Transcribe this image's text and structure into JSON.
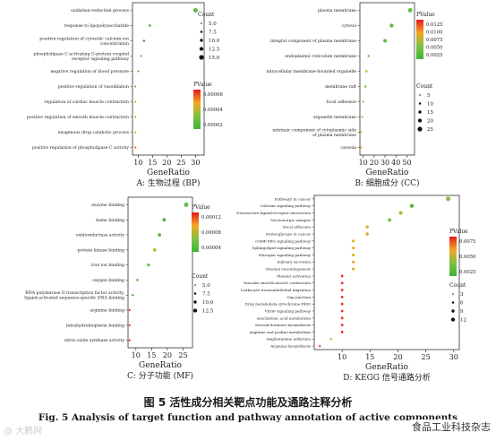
{
  "chart_data": [
    {
      "type": "scatter",
      "subtitle": "A: 生物过程 (BP)",
      "xlabel": "GeneRatio",
      "xticks": [
        10,
        15,
        20,
        25,
        30
      ],
      "xlim": [
        8,
        33
      ],
      "categories": [
        "oxidation-reduction process",
        "response to lipopolysaccharide",
        "positive regulation of cytosolic calcium ion concentration",
        "phospholipase C-activating G-protein coupled receptor signaling pathway",
        "negative regulation of blood pressure",
        "positive regulation of vasodilation",
        "regulation of cardiac muscle contraction",
        "positive regulation of smooth muscle contraction",
        "exogenous drug catabolic process",
        "positive regulation of phospholipase C activity"
      ],
      "values": [
        30,
        14,
        12,
        11,
        10,
        9,
        9,
        9,
        9,
        9
      ],
      "pvalue": [
        2e-05,
        2e-05,
        1e-05,
        3e-05,
        2e-05,
        2e-05,
        4e-05,
        4e-05,
        4e-05,
        6e-05
      ],
      "count": [
        30,
        14,
        12,
        11,
        10,
        9,
        9,
        9,
        9,
        9
      ],
      "pvalue_legend": {
        "title": "PValue",
        "ticks": [
          "0.00006",
          "0.00004",
          "0.00002"
        ],
        "range": [
          1e-05,
          7e-05
        ]
      },
      "count_legend": {
        "title": "Count",
        "ticks": [
          "5.0",
          "7.5",
          "10.0",
          "12.5",
          "15.0"
        ]
      }
    },
    {
      "type": "scatter",
      "subtitle": "B: 细胞成分 (CC)",
      "xlabel": "GeneRatio",
      "xticks": [
        10,
        20,
        30,
        40,
        50
      ],
      "xlim": [
        7,
        57
      ],
      "categories": [
        "plasma membrane",
        "cytosol",
        "integral component of plasma membrane",
        "endoplasmic reticulum membrane",
        "intracellular membrane-bounded organelle",
        "membrane raft",
        "focal adhesion",
        "organelle membrane",
        "extrinsic component of cytoplasmic side of plasma membrane",
        "caveola"
      ],
      "values": [
        53,
        36,
        30,
        15,
        13,
        12,
        10,
        9,
        8,
        8
      ],
      "pvalue": [
        0.004,
        0.003,
        0.004,
        0.005,
        0.007,
        0.003,
        0.006,
        0.008,
        0.009,
        0.01
      ],
      "count": [
        25,
        20,
        18,
        8,
        8,
        7,
        6,
        5,
        5,
        5
      ],
      "pvalue_legend": {
        "title": "PValue",
        "ticks": [
          "0.0125",
          "0.0100",
          "0.0075",
          "0.0050",
          "0.0025"
        ],
        "range": [
          0.001,
          0.014
        ]
      },
      "count_legend": {
        "title": "Count",
        "ticks": [
          "5",
          "10",
          "15",
          "20",
          "25"
        ]
      }
    },
    {
      "type": "scatter",
      "subtitle": "C: 分子功能 (MF)",
      "xlabel": "GeneRatio",
      "xticks": [
        10,
        15,
        20,
        25
      ],
      "xlim": [
        7.5,
        28
      ],
      "categories": [
        "enzyme binding",
        "heme binding",
        "oxidoreductase activity",
        "protein kinase binding",
        "iron ion binding",
        "oxygen binding",
        "RNA polymerase II transcription factor activity, ligand-activated sequence-specific DNA binding",
        "arginine binding",
        "tetrahydrobiopterin binding",
        "nitric-oxide synthase activity"
      ],
      "values": [
        26,
        19,
        17.5,
        16,
        14,
        10.5,
        9,
        8,
        8,
        8
      ],
      "pvalue": [
        4e-05,
        2e-05,
        4e-05,
        8e-05,
        4e-05,
        4e-05,
        2e-05,
        0.00014,
        0.00014,
        0.00014
      ],
      "count": [
        13,
        9,
        9,
        8,
        7,
        5,
        4,
        3,
        3,
        3
      ],
      "pvalue_legend": {
        "title": "PValue",
        "ticks": [
          "0.00012",
          "0.00008",
          "0.00004"
        ],
        "range": [
          1e-05,
          0.00015
        ]
      },
      "count_legend": {
        "title": "Count",
        "ticks": [
          "5.0",
          "7.5",
          "10.0",
          "12.5"
        ]
      }
    },
    {
      "type": "scatter",
      "subtitle": "D: KEGG 信号通路分析",
      "xlabel": "GeneRatio",
      "xticks": [
        10,
        15,
        20,
        25,
        30
      ],
      "xlim": [
        5,
        31
      ],
      "categories": [
        "Pathways in cancer",
        "Calcium signaling pathway",
        "Neuroactive ligand-receptor interaction",
        "Serotonergic synapse",
        "Focal adhesion",
        "Proteoglycans in cancer",
        "cGMP-PKG signaling pathway",
        "Sphingolipid signaling pathway",
        "Estrogen signaling pathway",
        "Salivary secretion",
        "Ovarian steroidogenesis",
        "Platelet activation",
        "Vascular smooth muscle contraction",
        "Leukocyte transendothelial migration",
        "Gap junction",
        "Drug metabolism-cytochrome P450",
        "VEGF signaling pathway",
        "Arachidonic acid metabolism",
        "Steroid hormone biosynthesis",
        "Arginine and proline metabolism",
        "Amphetamine addiction",
        "Arginine biosynthesis"
      ],
      "values": [
        29,
        22.5,
        20.5,
        18.5,
        14.5,
        14.5,
        12,
        12,
        12,
        12,
        12,
        10,
        10,
        10,
        10,
        10,
        10,
        10,
        10,
        10,
        8,
        6
      ],
      "pvalue": [
        0.004,
        0.002,
        0.005,
        0.003,
        0.006,
        0.006,
        0.006,
        0.006,
        0.006,
        0.006,
        0.006,
        0.009,
        0.009,
        0.009,
        0.009,
        0.009,
        0.009,
        0.009,
        0.009,
        0.009,
        0.006,
        0.009
      ],
      "count": [
        12,
        10,
        9,
        8,
        7,
        7,
        6,
        6,
        6,
        6,
        6,
        5,
        5,
        5,
        5,
        5,
        5,
        5,
        5,
        5,
        4,
        3
      ],
      "pvalue_legend": {
        "title": "PValue",
        "ticks": [
          "0.0075",
          "0.0050",
          "0.0025"
        ],
        "range": [
          0.001,
          0.0095
        ]
      },
      "count_legend": {
        "title": "Count",
        "ticks": [
          "3",
          "6",
          "9",
          "12"
        ]
      }
    }
  ],
  "caption": {
    "chinese": "图 5   活性成分相关靶点功能及通路注释分析",
    "english": "Fig. 5   Analysis of target function and pathway annotation of active components"
  },
  "watermark": {
    "left": "@ 大鹏网",
    "right": "食品工业科技杂志"
  }
}
